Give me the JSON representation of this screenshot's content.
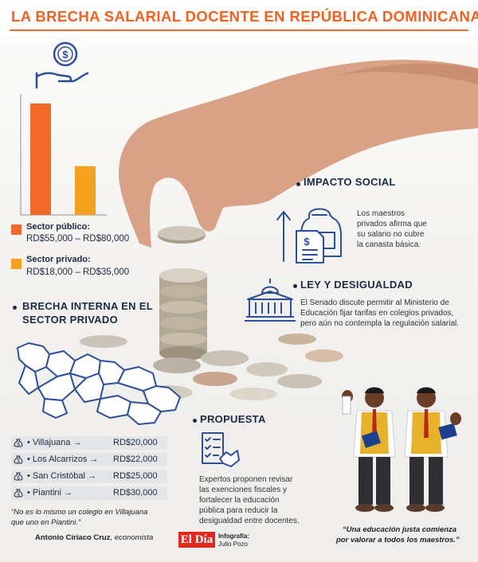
{
  "title": "LA BRECHA SALARIAL DOCENTE EN REPÚBLICA DOMINICANA",
  "colors": {
    "accent_orange": "#f26a2a",
    "accent_yellow": "#f6a11d",
    "navy": "#1d2a44",
    "icon_blue": "#2b4f9a"
  },
  "chart_data": {
    "type": "bar",
    "categories": [
      "Sector público",
      "Sector privado"
    ],
    "values": [
      80000,
      35000
    ],
    "colors": [
      "#f26a2a",
      "#f6a11d"
    ]
  },
  "legend": [
    {
      "label": "Sector público:",
      "range": "RD$55,000 – RD$80,000"
    },
    {
      "label": "Sector privado:",
      "range": "RD$18,000 – RD$35,000"
    }
  ],
  "impacto": {
    "heading": "IMPACTO SOCIAL",
    "text": [
      "Los maestros",
      "privados afirma que",
      "su salario no cubre",
      "la canasta básica."
    ]
  },
  "ley": {
    "heading": "LEY Y DESIGUALDAD",
    "text": [
      "El Senado discute permitir al Ministerio de",
      "Educación fijar tarifas en colegios privados,",
      "pero aún no contempla la regulación salarial."
    ]
  },
  "brecha": {
    "heading": [
      "BRECHA INTERNA EN EL",
      "SECTOR PRIVADO"
    ]
  },
  "salaries": [
    {
      "name": "• Villajuana →",
      "value": "RD$20,000"
    },
    {
      "name": "• Los Alcarrizos →",
      "value": "RD$22,000"
    },
    {
      "name": "• San Cristóbal →",
      "value": "RD$25,000"
    },
    {
      "name": "• Piantini →",
      "value": "RD$30,000"
    }
  ],
  "quote_left": {
    "text": [
      "“No es lo mismo un colegio en Villajuana",
      "que uno en Piantini.”"
    ],
    "author": "Antonio Ciriaco Cruz",
    "role": ", economista"
  },
  "propuesta": {
    "heading": "PROPUESTA",
    "text": [
      "Expertos proponen revisar",
      "las exenciones fiscales y",
      "fortalecer la educación",
      "pública para reducir la",
      "desigualdad entre docentes."
    ]
  },
  "credit": {
    "logo": "El Día",
    "label": "Infografía:",
    "author": "Julio Pozo"
  },
  "quote_right": [
    "“Una educación justa comienza",
    "por valorar a todos los maestros.”"
  ],
  "icons": [
    "money-hand-icon",
    "arrow-up-icon",
    "backpack-icon",
    "invoice-icon",
    "government-building-icon",
    "checklist-handshake-icon",
    "money-bag-icon"
  ]
}
